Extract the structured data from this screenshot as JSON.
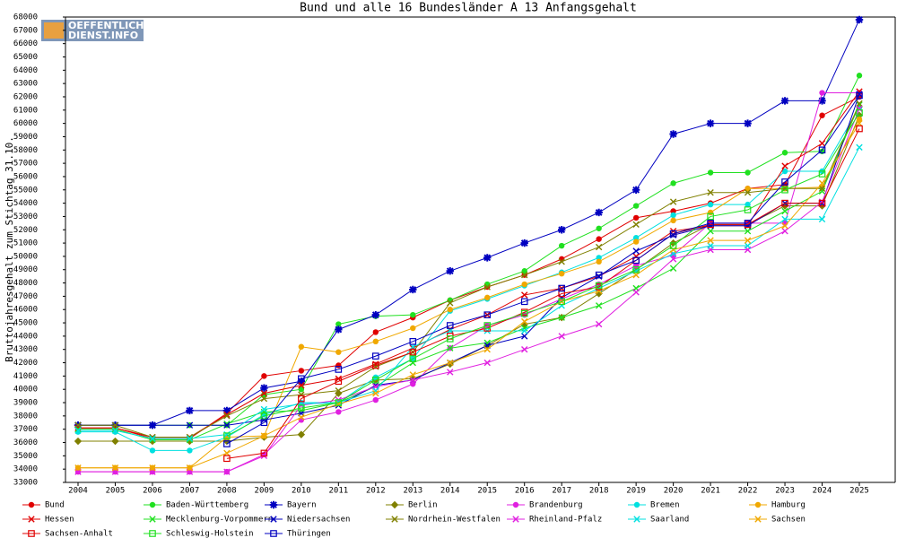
{
  "logo": [
    "OEFFENTLICHER",
    "DIENST.INFO"
  ],
  "chart_data": {
    "type": "line",
    "title": "Bund und alle 16 Bundesländer A 13 Anfangsgehalt",
    "y_label": "Bruttojahresgehalt zum Stichtag 31.10.",
    "categories": [
      "2004",
      "2005",
      "2006",
      "2007",
      "2008",
      "2009",
      "2010",
      "2011",
      "2012",
      "2013",
      "2014",
      "2015",
      "2016",
      "2017",
      "2018",
      "2019",
      "2020",
      "2021",
      "2022",
      "2023",
      "2024",
      "2025"
    ],
    "ylim": [
      33000,
      68000
    ],
    "yticks": [
      33000,
      34000,
      35000,
      36000,
      37000,
      38000,
      39000,
      40000,
      41000,
      42000,
      43000,
      44000,
      45000,
      46000,
      47000,
      48000,
      49000,
      50000,
      51000,
      52000,
      53000,
      54000,
      55000,
      56000,
      57000,
      58000,
      59000,
      60000,
      61000,
      62000,
      63000,
      64000,
      65000,
      66000,
      67000,
      68000
    ],
    "series": [
      {
        "name": "Bund",
        "color": "#e00000",
        "marker": "circle",
        "values": [
          37100,
          37100,
          36300,
          36300,
          38200,
          41000,
          41400,
          41800,
          44300,
          45400,
          46700,
          47700,
          48600,
          49800,
          51300,
          52900,
          53400,
          54000,
          55100,
          55400,
          60600,
          62000
        ]
      },
      {
        "name": "Baden-Württemberg",
        "color": "#20e020",
        "marker": "circle",
        "values": [
          37300,
          37300,
          37300,
          37300,
          37300,
          39600,
          40000,
          44900,
          45500,
          45600,
          46700,
          47900,
          48900,
          50800,
          52100,
          53800,
          55500,
          56300,
          56300,
          57800,
          57900,
          63600
        ]
      },
      {
        "name": "Bayern",
        "color": "#0000c0",
        "marker": "star",
        "values": [
          37300,
          37300,
          37300,
          38400,
          38400,
          40100,
          40600,
          44500,
          45600,
          47500,
          48900,
          49900,
          51000,
          52000,
          53300,
          55000,
          59200,
          60000,
          60000,
          61700,
          61700,
          67800
        ]
      },
      {
        "name": "Berlin",
        "color": "#808000",
        "marker": "diamond",
        "values": [
          36100,
          36100,
          36100,
          36100,
          36100,
          36400,
          36600,
          39700,
          40700,
          40800,
          41900,
          43300,
          44900,
          45400,
          47200,
          49000,
          51000,
          52400,
          52400,
          53800,
          53800,
          60600
        ]
      },
      {
        "name": "Brandenburg",
        "color": "#e020e0",
        "marker": "circle",
        "values": [
          33800,
          33800,
          33800,
          33800,
          33800,
          35100,
          37700,
          38300,
          39200,
          40400,
          43100,
          44800,
          45600,
          46800,
          47900,
          49300,
          50100,
          52500,
          52500,
          52500,
          62300,
          62300
        ]
      },
      {
        "name": "Bremen",
        "color": "#00e0e0",
        "marker": "circle",
        "values": [
          36800,
          36800,
          35400,
          35400,
          36400,
          38100,
          39000,
          39000,
          40900,
          42300,
          45900,
          46800,
          47800,
          48800,
          49900,
          51400,
          53100,
          53900,
          53900,
          56400,
          56400,
          61200
        ]
      },
      {
        "name": "Hamburg",
        "color": "#f0a800",
        "marker": "circle",
        "values": [
          34100,
          34100,
          34100,
          34100,
          36400,
          36500,
          43200,
          42800,
          43600,
          44600,
          46000,
          46900,
          47900,
          48700,
          49600,
          51100,
          52700,
          53300,
          55100,
          55100,
          55200,
          60300
        ]
      },
      {
        "name": "Hessen",
        "color": "#e00000",
        "marker": "cross",
        "values": [
          37100,
          37100,
          36400,
          36400,
          38100,
          39700,
          40300,
          40800,
          41900,
          43100,
          44500,
          45600,
          47100,
          47600,
          48500,
          50000,
          51900,
          52300,
          52300,
          56800,
          58500,
          62400
        ]
      },
      {
        "name": "Mecklenburg-Vorpommern",
        "color": "#20e020",
        "marker": "cross",
        "values": [
          37000,
          37000,
          36200,
          36200,
          37400,
          38300,
          38400,
          39000,
          40200,
          42000,
          43100,
          43500,
          44600,
          45400,
          46300,
          47600,
          49100,
          51900,
          51900,
          53400,
          54900,
          61400
        ]
      },
      {
        "name": "Niedersachsen",
        "color": "#0000c0",
        "marker": "cross",
        "values": [
          37300,
          37300,
          37300,
          37300,
          37300,
          37700,
          38200,
          38800,
          40300,
          40700,
          42000,
          43300,
          44000,
          46900,
          48500,
          50400,
          51600,
          52300,
          52300,
          54000,
          54000,
          62200
        ]
      },
      {
        "name": "Nordrhein-Westfalen",
        "color": "#808000",
        "marker": "cross",
        "values": [
          37300,
          37300,
          36400,
          36400,
          38000,
          39300,
          39600,
          39900,
          41700,
          42800,
          46500,
          47700,
          48600,
          49600,
          50700,
          52400,
          54100,
          54800,
          54800,
          55100,
          55100,
          61500
        ]
      },
      {
        "name": "Rheinland-Pfalz",
        "color": "#e020e0",
        "marker": "cross",
        "values": [
          33800,
          33800,
          33800,
          33800,
          33800,
          35000,
          38800,
          39200,
          40200,
          40700,
          41300,
          42000,
          43000,
          44000,
          44900,
          47300,
          49800,
          50500,
          50500,
          51900,
          54100,
          61100
        ]
      },
      {
        "name": "Saarland",
        "color": "#00e0e0",
        "marker": "cross",
        "values": [
          36900,
          36900,
          36300,
          36300,
          36600,
          38500,
          38900,
          39000,
          39900,
          43200,
          44400,
          44400,
          44400,
          46300,
          47600,
          48900,
          50200,
          50800,
          50800,
          52800,
          52800,
          58200
        ]
      },
      {
        "name": "Sachsen",
        "color": "#f0a800",
        "marker": "cross",
        "values": [
          34100,
          34100,
          34100,
          34100,
          35200,
          36500,
          37900,
          38900,
          39700,
          41100,
          42000,
          43000,
          45100,
          46600,
          47400,
          48600,
          50500,
          51200,
          51200,
          52300,
          55500,
          60000
        ]
      },
      {
        "name": "Sachsen-Anhalt",
        "color": "#e00000",
        "marker": "square",
        "values": [
          null,
          null,
          null,
          null,
          34800,
          35200,
          39300,
          40600,
          41800,
          42800,
          44000,
          44600,
          45800,
          47200,
          47700,
          49700,
          51700,
          52400,
          52400,
          54000,
          54000,
          59600
        ]
      },
      {
        "name": "Schleswig-Holstein",
        "color": "#20e020",
        "marker": "square",
        "values": [
          null,
          null,
          null,
          null,
          36500,
          38000,
          38600,
          39000,
          40700,
          42300,
          43800,
          44800,
          45700,
          46600,
          47800,
          49000,
          50800,
          53000,
          53500,
          55000,
          56200,
          60800
        ]
      },
      {
        "name": "Thüringen",
        "color": "#0000c0",
        "marker": "square",
        "values": [
          null,
          null,
          null,
          null,
          35900,
          37500,
          40800,
          41500,
          42500,
          43600,
          44800,
          45600,
          46600,
          47600,
          48600,
          49700,
          51700,
          52500,
          52500,
          55600,
          58000,
          62100
        ]
      }
    ]
  }
}
